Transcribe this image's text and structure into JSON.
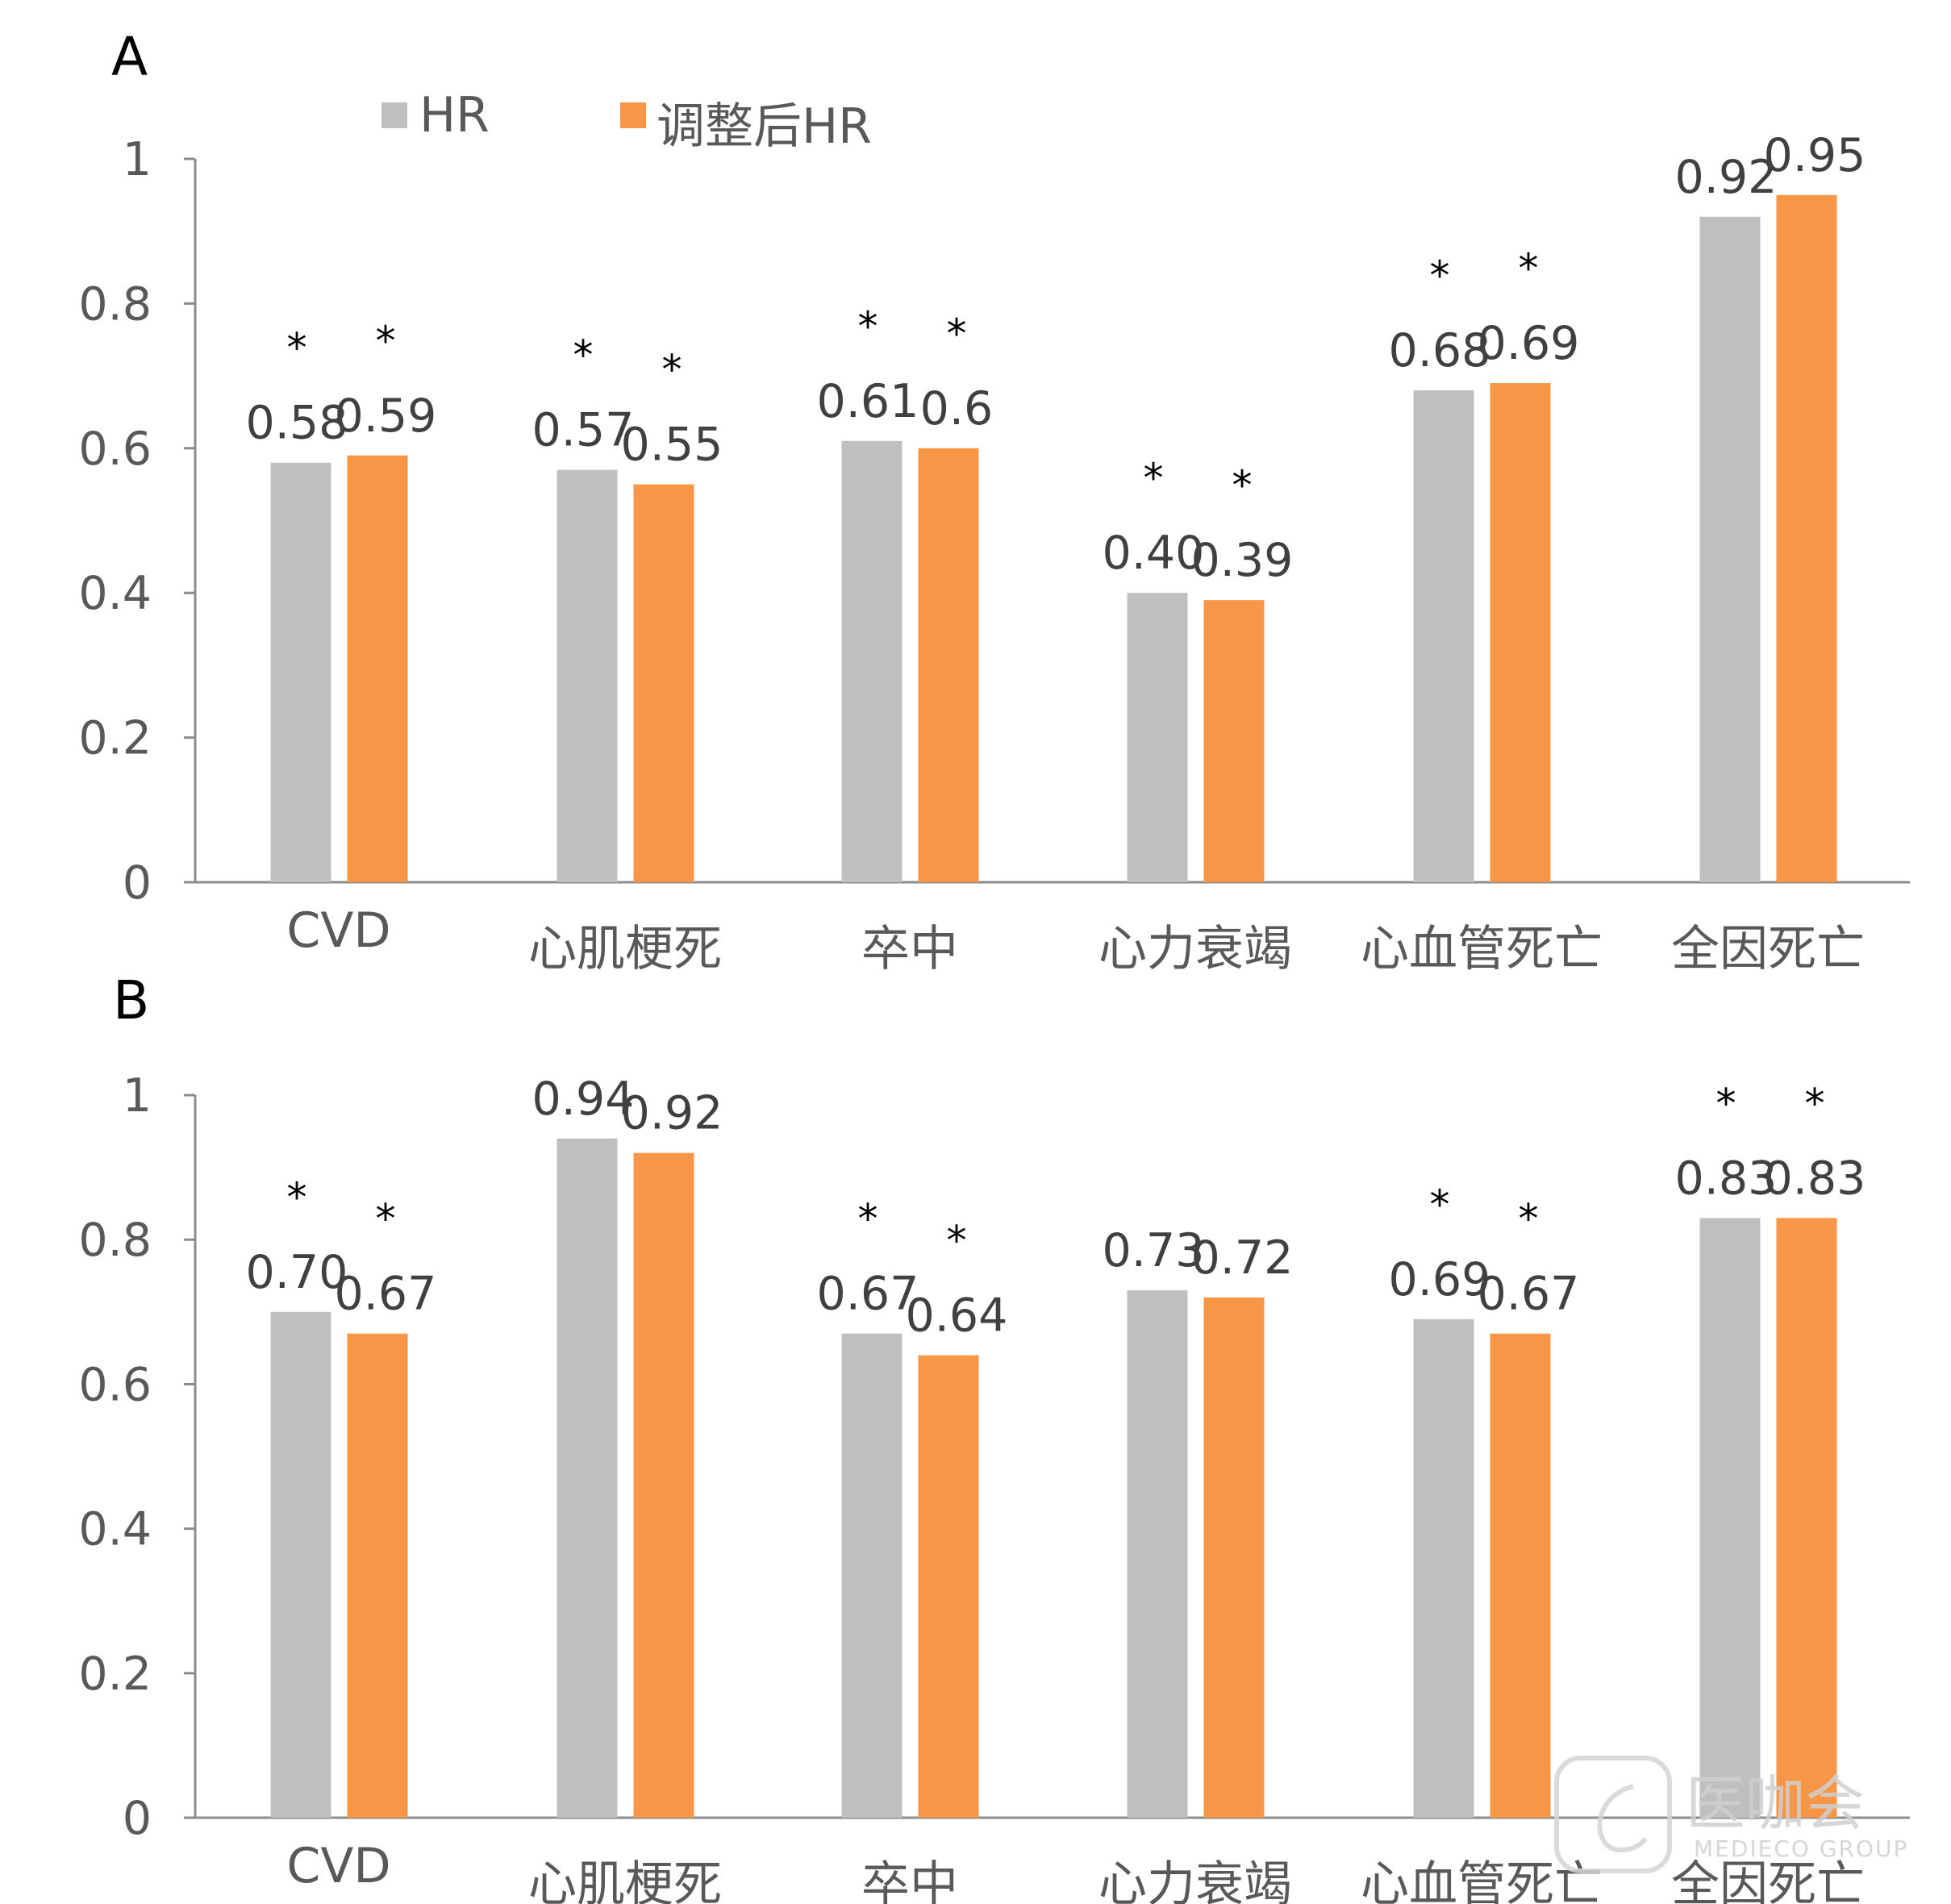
{
  "legend": [
    {
      "label": "HR",
      "color": "#bfbfbf"
    },
    {
      "label": "调整后HR",
      "color": "#f79646"
    }
  ],
  "watermark": {
    "main": "医咖会",
    "sub": "MEDIECO GROUP"
  },
  "chart_data": [
    {
      "type": "bar",
      "panel": "A",
      "categories": [
        "CVD",
        "心肌梗死",
        "卒中",
        "心力衰竭",
        "心血管死亡",
        "全因死亡"
      ],
      "yticks": [
        "0",
        "0.2",
        "0.4",
        "0.6",
        "0.8",
        "1"
      ],
      "ylim": [
        0,
        1
      ],
      "series": [
        {
          "name": "HR",
          "color": "#bfbfbf",
          "values": [
            0.58,
            0.57,
            0.61,
            0.4,
            0.68,
            0.92
          ],
          "labels": [
            "0.58",
            "0.57",
            "0.61",
            "0.40",
            "0.68",
            "0.92"
          ],
          "significant": [
            true,
            true,
            true,
            true,
            true,
            false
          ]
        },
        {
          "name": "调整后HR",
          "color": "#f79646",
          "values": [
            0.59,
            0.55,
            0.6,
            0.39,
            0.69,
            0.95
          ],
          "labels": [
            "0.59",
            "0.55",
            "0.6",
            "0.39",
            "0.69",
            "0.95"
          ],
          "significant": [
            true,
            true,
            true,
            true,
            true,
            false
          ]
        }
      ],
      "marker": "*"
    },
    {
      "type": "bar",
      "panel": "B",
      "categories": [
        "CVD",
        "心肌梗死",
        "卒中",
        "心力衰竭",
        "心血管死亡",
        "全因死亡"
      ],
      "yticks": [
        "0",
        "0.2",
        "0.4",
        "0.6",
        "0.8",
        "1"
      ],
      "ylim": [
        0,
        1
      ],
      "series": [
        {
          "name": "HR",
          "color": "#bfbfbf",
          "values": [
            0.7,
            0.94,
            0.67,
            0.73,
            0.69,
            0.83
          ],
          "labels": [
            "0.70",
            "0.94",
            "0.67",
            "0.73",
            "0.69",
            "0.83"
          ],
          "significant": [
            true,
            false,
            true,
            false,
            true,
            true
          ]
        },
        {
          "name": "调整后HR",
          "color": "#f79646",
          "values": [
            0.67,
            0.92,
            0.64,
            0.72,
            0.67,
            0.83
          ],
          "labels": [
            "0.67",
            "0.92",
            "0.64",
            "0.72",
            "0.67",
            "0.83"
          ],
          "significant": [
            true,
            false,
            true,
            false,
            true,
            true
          ]
        }
      ],
      "marker": "*"
    }
  ]
}
